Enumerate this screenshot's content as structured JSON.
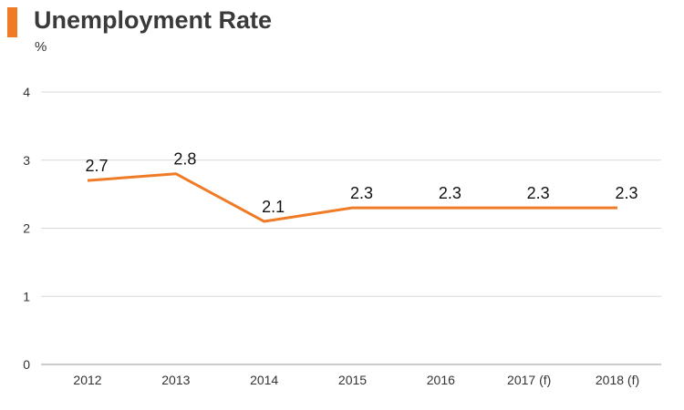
{
  "header": {
    "title": "Unemployment Rate",
    "unit": "%"
  },
  "colors": {
    "accent": "#f07b26",
    "line": "#f07b26",
    "grid": "#d9d9d9",
    "axis": "#999999"
  },
  "chart_data": {
    "type": "line",
    "title": "Unemployment Rate",
    "ylabel": "%",
    "xlabel": "",
    "categories": [
      "2012",
      "2013",
      "2014",
      "2015",
      "2016",
      "2017 (f)",
      "2018 (f)"
    ],
    "series": [
      {
        "values": [
          2.7,
          2.8,
          2.1,
          2.3,
          2.3,
          2.3,
          2.3
        ]
      }
    ],
    "data_labels": [
      "2.7",
      "2.8",
      "2.1",
      "2.3",
      "2.3",
      "2.3",
      "2.3"
    ],
    "yticks": [
      "0",
      "1",
      "2",
      "3",
      "4"
    ],
    "ylim": [
      0,
      4
    ],
    "grid": true,
    "legend": "none"
  }
}
